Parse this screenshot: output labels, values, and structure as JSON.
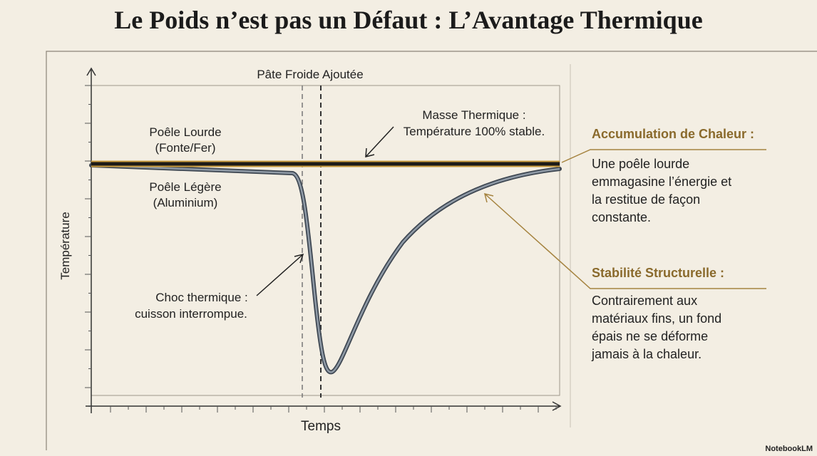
{
  "header": {
    "title": "Le Poids n’est pas un Défaut : L’Avantage Thermique"
  },
  "diagram": {
    "y_axis_label": "Température",
    "x_axis_label": "Temps",
    "event_label": "Pâte Froide Ajoutée",
    "heavy_pan": [
      "Poêle Lourde",
      "(Fonte/Fer)"
    ],
    "light_pan": [
      "Poêle Légère",
      "(Aluminium)"
    ],
    "heavy_note": [
      "Masse Thermique :",
      "Température 100% stable."
    ],
    "light_note": [
      "Choc thermique :",
      "cuisson interrompue."
    ]
  },
  "panels": [
    {
      "heading": "Accumulation de Chaleur :",
      "body": [
        "Une poêle lourde",
        "emmagasine l’énergie et",
        "la restitue de façon",
        "constante."
      ]
    },
    {
      "heading": "Stabilité Structurelle :",
      "body": [
        "Contrairement aux",
        "matériaux fins, un fond",
        "épais ne se déforme",
        "jamais à la chaleur."
      ]
    }
  ],
  "footer": {
    "brand": "NotebookLM"
  }
}
